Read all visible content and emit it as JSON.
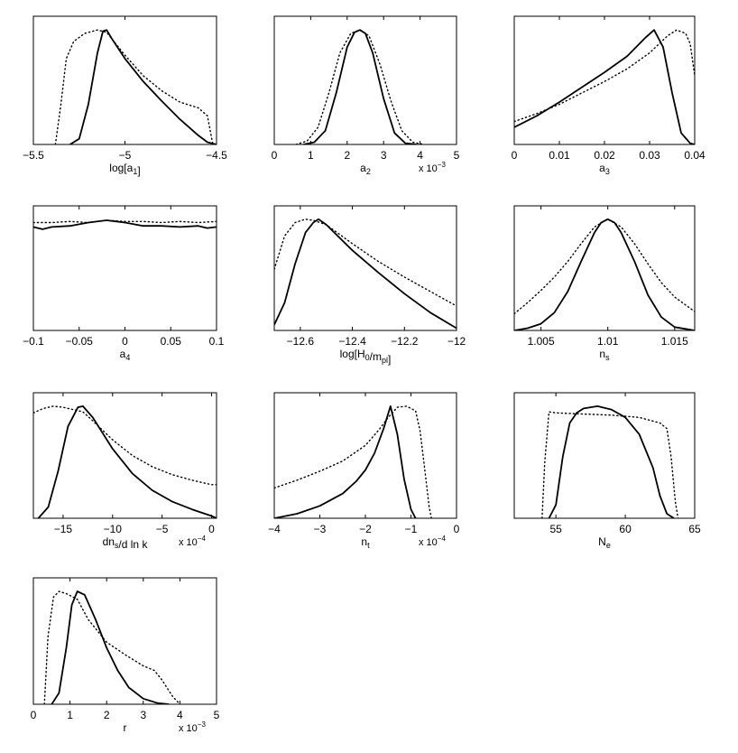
{
  "chart_data": [
    {
      "type": "line",
      "xlabel": "log[a",
      "xlabel_sub": "1",
      "xlabel_tail": "]",
      "scale_note": "",
      "xlim": [
        -5.5,
        -4.5
      ],
      "ticks": [
        -5.5,
        -5,
        -4.5
      ],
      "tick_labels": [
        "−5.5",
        "−5",
        "−4.5"
      ],
      "series": [
        {
          "style": "solid",
          "x": [
            -5.3,
            -5.25,
            -5.2,
            -5.15,
            -5.12,
            -5.1,
            -5.07,
            -5.0,
            -4.9,
            -4.8,
            -4.7,
            -4.6,
            -4.55,
            -4.5
          ],
          "y": [
            0,
            0.05,
            0.35,
            0.8,
            0.99,
            1.0,
            0.92,
            0.75,
            0.55,
            0.38,
            0.22,
            0.08,
            0.02,
            0.0
          ]
        },
        {
          "style": "dotted",
          "x": [
            -5.38,
            -5.35,
            -5.32,
            -5.28,
            -5.22,
            -5.15,
            -5.1,
            -5.0,
            -4.9,
            -4.8,
            -4.7,
            -4.6,
            -4.55,
            -4.52
          ],
          "y": [
            0,
            0.35,
            0.75,
            0.9,
            0.97,
            1.0,
            0.98,
            0.78,
            0.6,
            0.47,
            0.37,
            0.32,
            0.25,
            0.0
          ]
        }
      ]
    },
    {
      "type": "line",
      "xlabel": "a",
      "xlabel_sub": "2",
      "xlabel_tail": "",
      "scale_note": "x 10",
      "scale_exp": "−3",
      "xlim": [
        0,
        5
      ],
      "ticks": [
        0,
        1,
        2,
        3,
        4,
        5
      ],
      "tick_labels": [
        "0",
        "1",
        "2",
        "3",
        "4",
        "5"
      ],
      "series": [
        {
          "style": "solid",
          "x": [
            0.8,
            1.1,
            1.4,
            1.7,
            2.0,
            2.2,
            2.35,
            2.5,
            2.7,
            3.0,
            3.3,
            3.6,
            3.9
          ],
          "y": [
            0,
            0.02,
            0.12,
            0.45,
            0.85,
            0.98,
            1.0,
            0.97,
            0.8,
            0.4,
            0.1,
            0.01,
            0.0
          ]
        },
        {
          "style": "dotted",
          "x": [
            0.6,
            0.9,
            1.2,
            1.5,
            1.8,
            2.1,
            2.35,
            2.6,
            2.9,
            3.2,
            3.5,
            3.8,
            4.1
          ],
          "y": [
            0,
            0.03,
            0.15,
            0.45,
            0.8,
            0.97,
            1.0,
            0.95,
            0.7,
            0.38,
            0.12,
            0.02,
            0.0
          ]
        }
      ]
    },
    {
      "type": "line",
      "xlabel": "a",
      "xlabel_sub": "3",
      "xlabel_tail": "",
      "scale_note": "",
      "xlim": [
        0,
        0.04
      ],
      "ticks": [
        0,
        0.01,
        0.02,
        0.03,
        0.04
      ],
      "tick_labels": [
        "0",
        "0.01",
        "0.02",
        "0.03",
        "0.04"
      ],
      "series": [
        {
          "style": "solid",
          "x": [
            0,
            0.005,
            0.01,
            0.015,
            0.02,
            0.025,
            0.029,
            0.031,
            0.033,
            0.035,
            0.037,
            0.039,
            0.04
          ],
          "y": [
            0.15,
            0.25,
            0.37,
            0.5,
            0.63,
            0.77,
            0.93,
            1.0,
            0.85,
            0.45,
            0.1,
            0.01,
            0.0
          ]
        },
        {
          "style": "dotted",
          "x": [
            0,
            0.005,
            0.01,
            0.015,
            0.02,
            0.025,
            0.03,
            0.034,
            0.036,
            0.038,
            0.039,
            0.04
          ],
          "y": [
            0.2,
            0.27,
            0.35,
            0.45,
            0.55,
            0.66,
            0.8,
            0.95,
            1.0,
            0.97,
            0.88,
            0.6
          ]
        }
      ]
    },
    {
      "type": "line",
      "xlabel": "a",
      "xlabel_sub": "4",
      "xlabel_tail": "",
      "scale_note": "",
      "xlim": [
        -0.1,
        0.1
      ],
      "ticks": [
        -0.1,
        -0.05,
        0,
        0.05,
        0.1
      ],
      "tick_labels": [
        "−0.1",
        "−0.05",
        "0",
        "0.05",
        "0.1"
      ],
      "series": [
        {
          "style": "solid",
          "x": [
            -0.1,
            -0.09,
            -0.08,
            -0.06,
            -0.04,
            -0.02,
            0,
            0.02,
            0.04,
            0.06,
            0.08,
            0.09,
            0.1
          ],
          "y": [
            0.93,
            0.91,
            0.93,
            0.94,
            0.97,
            0.99,
            0.97,
            0.94,
            0.94,
            0.93,
            0.94,
            0.92,
            0.93
          ]
        },
        {
          "style": "dotted",
          "x": [
            -0.1,
            -0.08,
            -0.06,
            -0.04,
            -0.02,
            0,
            0.02,
            0.04,
            0.06,
            0.08,
            0.1
          ],
          "y": [
            0.97,
            0.97,
            0.98,
            0.97,
            0.99,
            0.98,
            0.98,
            0.97,
            0.98,
            0.97,
            0.98
          ]
        }
      ]
    },
    {
      "type": "line",
      "xlabel": "log[H",
      "xlabel_sub": "0",
      "xlabel_tail": "/m",
      "xlabel_sub2": "pl",
      "xlabel_tail2": "]",
      "scale_note": "",
      "xlim": [
        -12.7,
        -12
      ],
      "ticks": [
        -12.6,
        -12.4,
        -12.2,
        -12
      ],
      "tick_labels": [
        "−12.6",
        "−12.4",
        "−12.2",
        "−12"
      ],
      "series": [
        {
          "style": "solid",
          "x": [
            -12.7,
            -12.66,
            -12.62,
            -12.58,
            -12.55,
            -12.53,
            -12.5,
            -12.4,
            -12.3,
            -12.2,
            -12.1,
            -12.0
          ],
          "y": [
            0.05,
            0.25,
            0.6,
            0.88,
            0.97,
            1.0,
            0.95,
            0.72,
            0.52,
            0.33,
            0.16,
            0.02
          ]
        },
        {
          "style": "dotted",
          "x": [
            -12.7,
            -12.66,
            -12.62,
            -12.58,
            -12.55,
            -12.5,
            -12.4,
            -12.3,
            -12.2,
            -12.1,
            -12.0
          ],
          "y": [
            0.55,
            0.85,
            0.97,
            1.0,
            0.99,
            0.95,
            0.78,
            0.62,
            0.48,
            0.35,
            0.22
          ]
        }
      ]
    },
    {
      "type": "line",
      "xlabel": "n",
      "xlabel_sub": "s",
      "xlabel_tail": "",
      "scale_note": "",
      "xlim": [
        1.003,
        1.0165
      ],
      "ticks": [
        1.005,
        1.01,
        1.015
      ],
      "tick_labels": [
        "1.005",
        "1.01",
        "1.015"
      ],
      "series": [
        {
          "style": "solid",
          "x": [
            1.003,
            1.004,
            1.005,
            1.006,
            1.007,
            1.008,
            1.009,
            1.0095,
            1.01,
            1.0105,
            1.011,
            1.012,
            1.013,
            1.014,
            1.015,
            1.0165
          ],
          "y": [
            0.0,
            0.02,
            0.06,
            0.16,
            0.35,
            0.62,
            0.88,
            0.97,
            1.0,
            0.97,
            0.88,
            0.62,
            0.32,
            0.12,
            0.03,
            0.0
          ]
        },
        {
          "style": "dotted",
          "x": [
            1.003,
            1.004,
            1.005,
            1.006,
            1.007,
            1.008,
            1.009,
            1.01,
            1.011,
            1.012,
            1.013,
            1.014,
            1.015,
            1.0165
          ],
          "y": [
            0.15,
            0.25,
            0.36,
            0.48,
            0.62,
            0.78,
            0.93,
            1.0,
            0.93,
            0.78,
            0.6,
            0.43,
            0.3,
            0.17
          ]
        }
      ]
    },
    {
      "type": "line",
      "xlabel": "dn",
      "xlabel_sub": "s",
      "xlabel_tail": "/d ln k",
      "scale_note": "x 10",
      "scale_exp": "−4",
      "xlim": [
        -18,
        0.5
      ],
      "ticks": [
        -15,
        -10,
        -5,
        0
      ],
      "tick_labels": [
        "−15",
        "−10",
        "−5",
        "0"
      ],
      "series": [
        {
          "style": "solid",
          "x": [
            -17.5,
            -16.5,
            -15.5,
            -14.5,
            -13.5,
            -13,
            -12,
            -10,
            -8,
            -6,
            -4,
            -2,
            0,
            0.5
          ],
          "y": [
            0.0,
            0.1,
            0.42,
            0.82,
            0.99,
            1.0,
            0.9,
            0.62,
            0.4,
            0.25,
            0.15,
            0.08,
            0.02,
            0.0
          ]
        },
        {
          "style": "dotted",
          "x": [
            -18,
            -17,
            -16,
            -15,
            -14,
            -13,
            -12,
            -10,
            -8,
            -6,
            -4,
            -2,
            0,
            0.5
          ],
          "y": [
            0.94,
            0.98,
            1.0,
            0.99,
            0.97,
            0.95,
            0.87,
            0.7,
            0.56,
            0.46,
            0.39,
            0.34,
            0.3,
            0.3
          ]
        }
      ]
    },
    {
      "type": "line",
      "xlabel": "n",
      "xlabel_sub": "t",
      "xlabel_tail": "",
      "scale_note": "x 10",
      "scale_exp": "−4",
      "xlim": [
        -4,
        0
      ],
      "ticks": [
        -4,
        -3,
        -2,
        -1,
        0
      ],
      "tick_labels": [
        "−4",
        "−3",
        "−2",
        "−1",
        "0"
      ],
      "series": [
        {
          "style": "solid",
          "x": [
            -4,
            -3.5,
            -3,
            -2.5,
            -2.2,
            -2,
            -1.8,
            -1.6,
            -1.45,
            -1.3,
            -1.15,
            -1.0,
            -0.9
          ],
          "y": [
            0.0,
            0.04,
            0.11,
            0.22,
            0.33,
            0.43,
            0.58,
            0.8,
            1.0,
            0.75,
            0.35,
            0.08,
            0.0
          ]
        },
        {
          "style": "dotted",
          "x": [
            -4,
            -3.5,
            -3,
            -2.5,
            -2,
            -1.7,
            -1.5,
            -1.3,
            -1.1,
            -0.9,
            -0.8,
            -0.7,
            -0.6,
            -0.55
          ],
          "y": [
            0.27,
            0.34,
            0.42,
            0.51,
            0.65,
            0.79,
            0.9,
            0.99,
            1.0,
            0.96,
            0.78,
            0.45,
            0.1,
            0.0
          ]
        }
      ]
    },
    {
      "type": "line",
      "xlabel": "N",
      "xlabel_sub": "e",
      "xlabel_tail": "",
      "scale_note": "",
      "xlim": [
        52,
        65
      ],
      "ticks": [
        55,
        60,
        65
      ],
      "tick_labels": [
        "55",
        "60",
        "65"
      ],
      "series": [
        {
          "style": "solid",
          "x": [
            54.5,
            55,
            55.5,
            56,
            56.5,
            57,
            58,
            59,
            60,
            61,
            62,
            62.5,
            63,
            63.5
          ],
          "y": [
            0.0,
            0.12,
            0.55,
            0.85,
            0.94,
            0.98,
            1.0,
            0.97,
            0.9,
            0.75,
            0.45,
            0.2,
            0.04,
            0.0
          ]
        },
        {
          "style": "dotted",
          "x": [
            54,
            54.2,
            54.5,
            55,
            57,
            59,
            61,
            62.5,
            63,
            63.3,
            63.6,
            63.8
          ],
          "y": [
            0.0,
            0.5,
            0.95,
            0.94,
            0.93,
            0.92,
            0.9,
            0.85,
            0.8,
            0.55,
            0.15,
            0.0
          ]
        }
      ]
    },
    {
      "type": "line",
      "xlabel": "r",
      "xlabel_sub": "",
      "xlabel_tail": "",
      "scale_note": "x 10",
      "scale_exp": "−3",
      "xlim": [
        0,
        5
      ],
      "ticks": [
        0,
        1,
        2,
        3,
        4,
        5
      ],
      "tick_labels": [
        "0",
        "1",
        "2",
        "3",
        "4",
        "5"
      ],
      "series": [
        {
          "style": "solid",
          "x": [
            0.5,
            0.7,
            0.9,
            1.05,
            1.2,
            1.4,
            1.7,
            2.0,
            2.3,
            2.6,
            3.0,
            3.4,
            3.7
          ],
          "y": [
            0.0,
            0.1,
            0.5,
            0.88,
            1.0,
            0.97,
            0.75,
            0.5,
            0.3,
            0.15,
            0.05,
            0.01,
            0.0
          ]
        },
        {
          "style": "dotted",
          "x": [
            0.3,
            0.4,
            0.55,
            0.7,
            0.9,
            1.2,
            1.5,
            2.0,
            2.5,
            3.0,
            3.3,
            3.5,
            3.8,
            4.0
          ],
          "y": [
            0.0,
            0.6,
            0.95,
            1.0,
            0.98,
            0.93,
            0.75,
            0.55,
            0.44,
            0.34,
            0.3,
            0.22,
            0.07,
            0.0
          ]
        }
      ]
    }
  ]
}
